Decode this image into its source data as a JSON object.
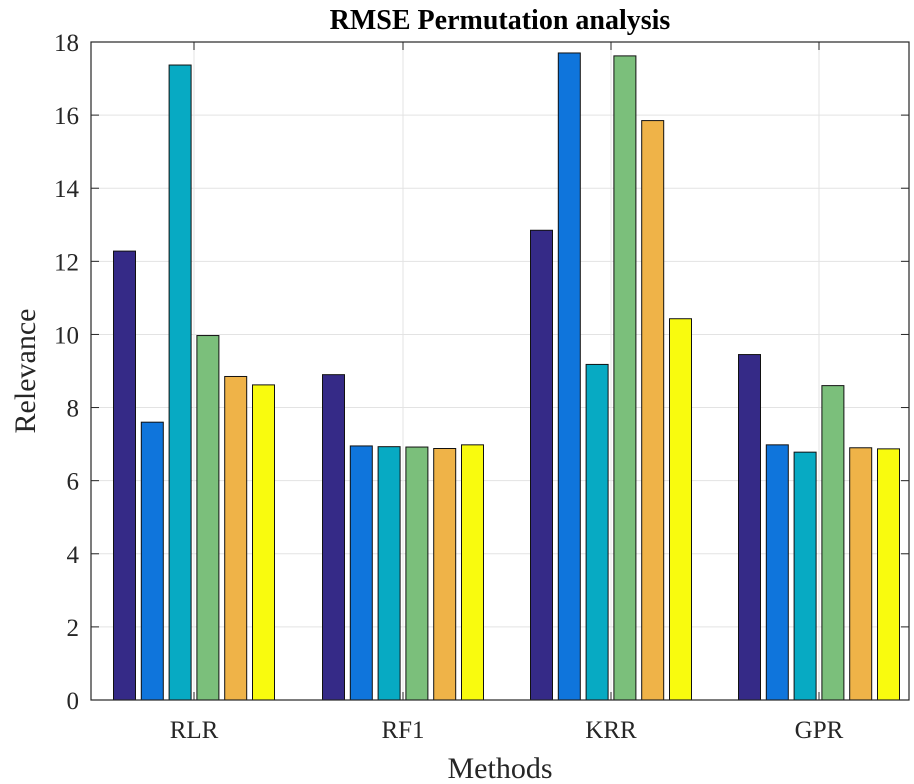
{
  "chart_data": {
    "type": "bar",
    "title": "RMSE Permutation analysis",
    "xlabel": "Methods",
    "ylabel": "Relevance",
    "categories": [
      "RLR",
      "RF1",
      "KRR",
      "GPR"
    ],
    "ylim": [
      0,
      18
    ],
    "yticks": [
      0,
      2,
      4,
      6,
      8,
      10,
      12,
      14,
      16,
      18
    ],
    "grid": true,
    "series": [
      {
        "color": "#352a87",
        "values": [
          12.28,
          8.9,
          12.85,
          9.45
        ]
      },
      {
        "color": "#0f75dc",
        "values": [
          7.6,
          6.95,
          17.7,
          6.98
        ]
      },
      {
        "color": "#07aac3",
        "values": [
          17.37,
          6.93,
          9.18,
          6.78
        ]
      },
      {
        "color": "#7bbf7b",
        "values": [
          9.97,
          6.92,
          17.62,
          8.6
        ]
      },
      {
        "color": "#efb348",
        "values": [
          8.85,
          6.88,
          15.85,
          6.9
        ]
      },
      {
        "color": "#f9fb0e",
        "values": [
          8.62,
          6.98,
          10.43,
          6.87
        ]
      }
    ]
  }
}
